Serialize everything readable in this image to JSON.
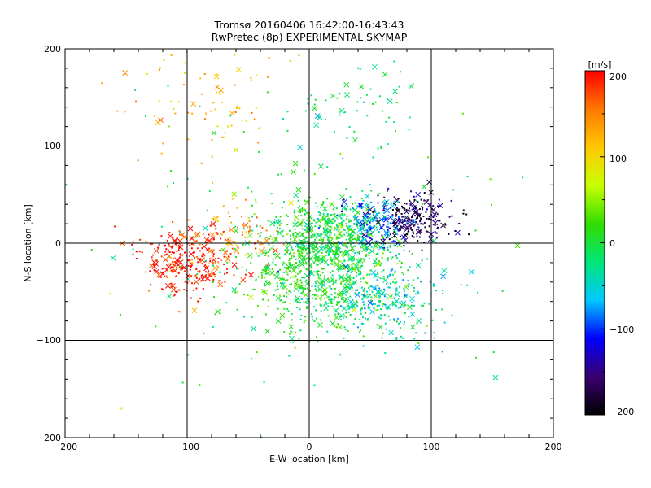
{
  "chart_data": {
    "type": "scatter",
    "title": "Tromsø 20160406 16:42:00-16:43:43",
    "subtitle": "RwPretec (8p) EXPERIMENTAL SKYMAP",
    "xlabel": "E-W location [km]",
    "ylabel": "N-S location [km]",
    "xlim": [
      -200,
      200
    ],
    "ylim": [
      -200,
      200
    ],
    "x_ticks": [
      -200,
      -100,
      0,
      100,
      200
    ],
    "y_ticks": [
      -200,
      -100,
      0,
      100,
      200
    ],
    "x_tick_labels": [
      "−200",
      "−100",
      "0",
      "100",
      "200"
    ],
    "y_tick_labels": [
      "−200",
      "−100",
      "0",
      "100",
      "200"
    ],
    "grid": true,
    "marker_styles": [
      "dot",
      "cross"
    ],
    "colorbar": {
      "label": "[m/s]",
      "range": [
        -200,
        200
      ],
      "ticks": [
        200,
        100,
        0,
        -100,
        -200
      ],
      "tick_labels": [
        "200",
        "100",
        "0",
        "−100",
        "−200"
      ],
      "colormap": [
        "#000000",
        "#3a0070",
        "#0000ff",
        "#00c8ff",
        "#00e678",
        "#32dc00",
        "#c8ff00",
        "#ffc800",
        "#ff7800",
        "#ff0000"
      ],
      "placement": "right"
    },
    "clusters": [
      {
        "region": "central",
        "cx": 15,
        "cy": 5,
        "sx": 25,
        "sy": 22,
        "n": 600,
        "v": 0
      },
      {
        "region": "south-central",
        "cx": 10,
        "cy": -40,
        "sx": 30,
        "sy": 25,
        "n": 500,
        "v": 10
      },
      {
        "region": "south-east",
        "cx": 60,
        "cy": -55,
        "sx": 25,
        "sy": 20,
        "n": 250,
        "v": -40
      },
      {
        "region": "east",
        "cx": 85,
        "cy": 25,
        "sx": 18,
        "sy": 12,
        "n": 230,
        "v": -170
      },
      {
        "region": "east-mid",
        "cx": 50,
        "cy": 20,
        "sx": 15,
        "sy": 14,
        "n": 150,
        "v": -80
      },
      {
        "region": "west",
        "cx": -100,
        "cy": -20,
        "sx": 18,
        "sy": 16,
        "n": 280,
        "v": 190
      },
      {
        "region": "west-mid",
        "cx": -60,
        "cy": 5,
        "sx": 18,
        "sy": 15,
        "n": 90,
        "v": 140
      },
      {
        "region": "north-west",
        "cx": -90,
        "cy": 150,
        "sx": 30,
        "sy": 30,
        "n": 80,
        "v": 120
      },
      {
        "region": "north-central",
        "cx": 35,
        "cy": 130,
        "sx": 25,
        "sy": 25,
        "n": 60,
        "v": -20
      },
      {
        "region": "scattered",
        "cx": 0,
        "cy": 0,
        "sx": 90,
        "sy": 90,
        "n": 150,
        "v": 0
      }
    ]
  }
}
